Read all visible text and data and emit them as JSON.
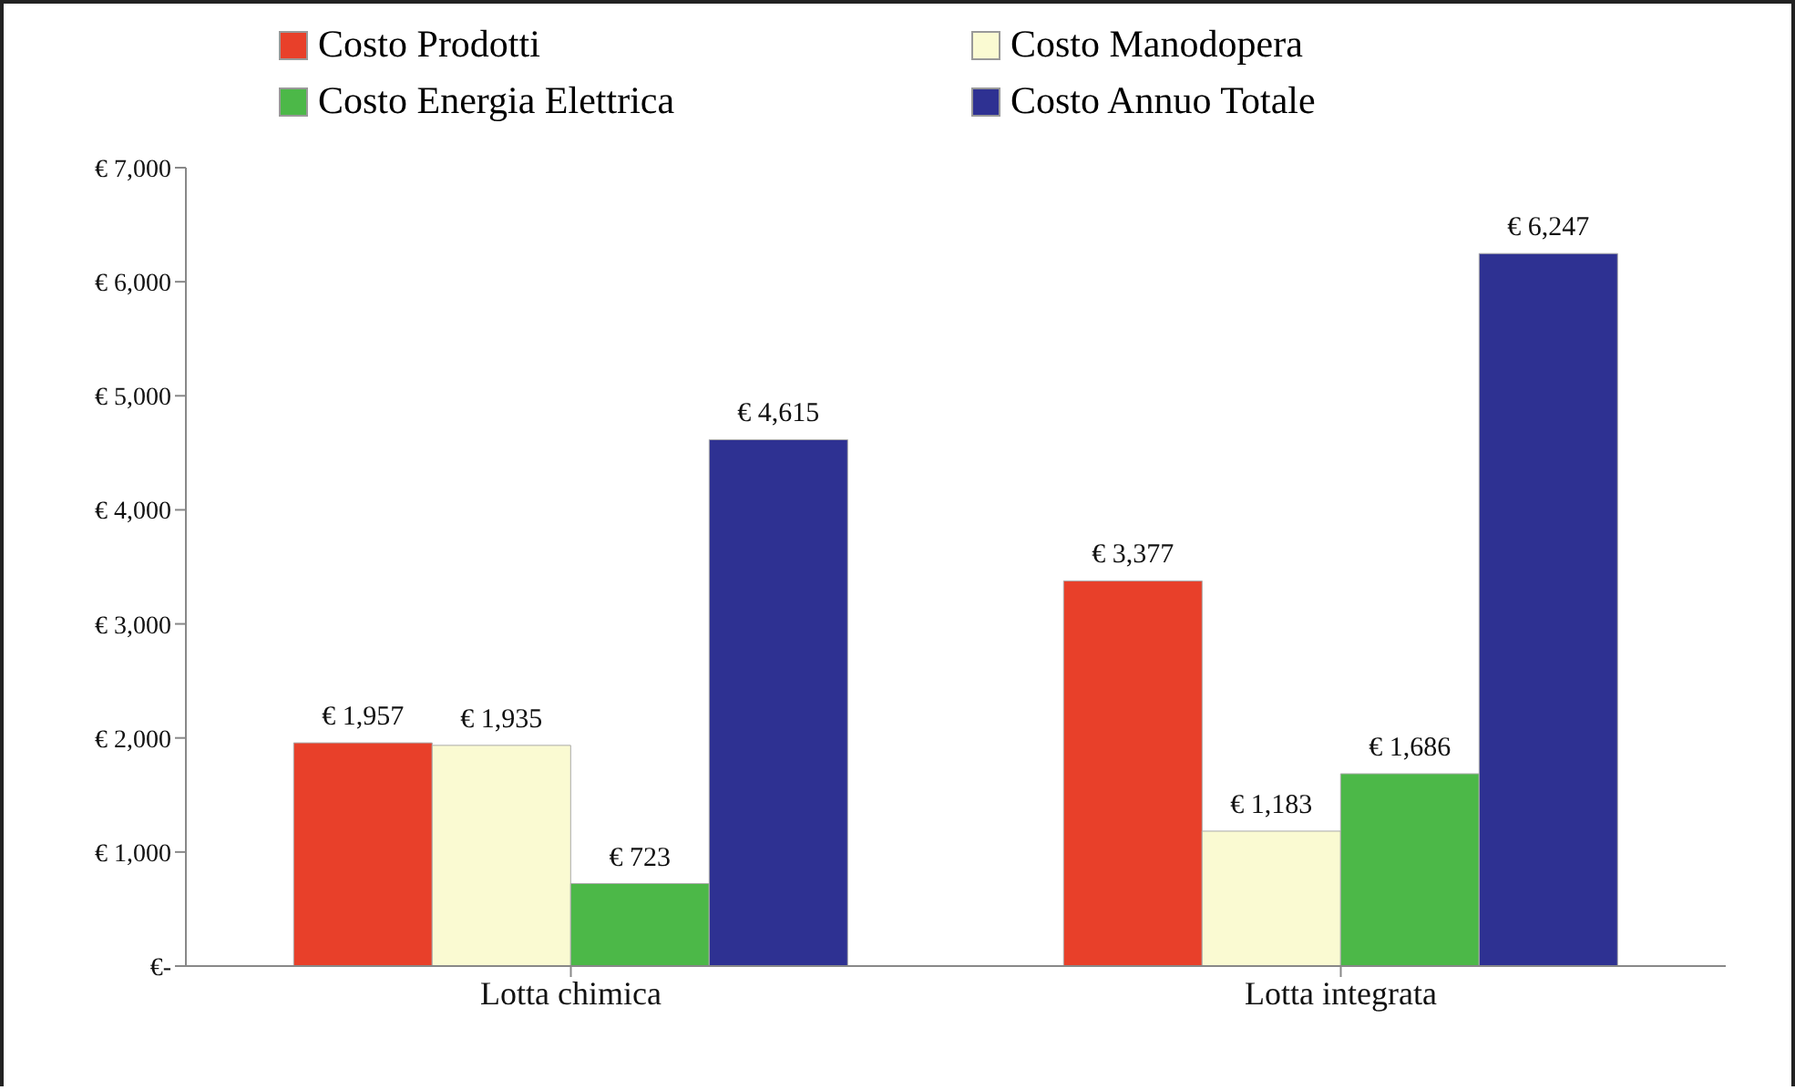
{
  "chart_data": {
    "type": "bar",
    "categories": [
      "Lotta chimica",
      "Lotta integrata"
    ],
    "series": [
      {
        "name": "Costo Prodotti",
        "color": "#e8402a",
        "values": [
          1957,
          3377
        ],
        "value_labels": [
          "€ 1,957",
          "€ 3,377"
        ]
      },
      {
        "name": "Costo Manodopera",
        "color": "#fafad2",
        "values": [
          1935,
          1183
        ],
        "value_labels": [
          "€ 1,935",
          "€ 1,183"
        ]
      },
      {
        "name": "Costo Energia Elettrica",
        "color": "#4cb848",
        "values": [
          723,
          1686
        ],
        "value_labels": [
          "€ 723",
          "€ 1,686"
        ]
      },
      {
        "name": "Costo Annuo Totale",
        "color": "#2e3192",
        "values": [
          4615,
          6247
        ],
        "value_labels": [
          "€ 4,615",
          "€ 6,247"
        ]
      }
    ],
    "ylim": [
      0,
      7000
    ],
    "yticks": [
      {
        "value": 0,
        "label": "€-"
      },
      {
        "value": 1000,
        "label": "€ 1,000"
      },
      {
        "value": 2000,
        "label": "€ 2,000"
      },
      {
        "value": 3000,
        "label": "€ 3,000"
      },
      {
        "value": 4000,
        "label": "€ 4,000"
      },
      {
        "value": 5000,
        "label": "€ 5,000"
      },
      {
        "value": 6000,
        "label": "€ 6,000"
      },
      {
        "value": 7000,
        "label": "€ 7,000"
      }
    ],
    "grid": false,
    "legend": "top"
  }
}
